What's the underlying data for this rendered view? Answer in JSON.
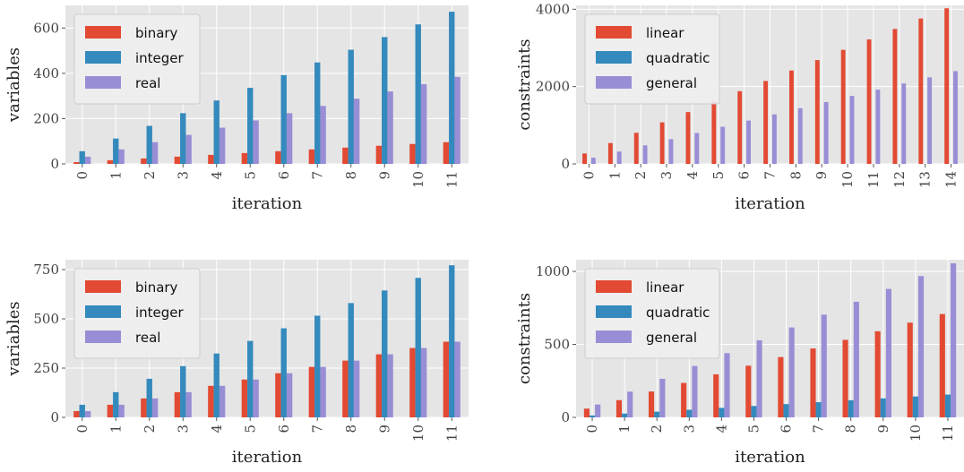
{
  "colors": {
    "binary_linear": "#e24a33",
    "integer_quadratic": "#348abd",
    "real_general": "#988ed5",
    "panel_bg": "#e5e5e5",
    "grid": "#ffffff"
  },
  "chart_data": [
    {
      "type": "bar",
      "xlabel": "iteration",
      "ylabel": "variables",
      "categories": [
        "0",
        "1",
        "2",
        "3",
        "4",
        "5",
        "6",
        "7",
        "8",
        "9",
        "10",
        "11"
      ],
      "ylim": [
        0,
        700
      ],
      "yticks": [
        0,
        200,
        400,
        600
      ],
      "legend": "top-left",
      "grid": true,
      "series": [
        {
          "name": "binary",
          "color": "#e24a33",
          "values": [
            8,
            16,
            24,
            32,
            40,
            48,
            56,
            64,
            72,
            80,
            88,
            96
          ]
        },
        {
          "name": "integer",
          "color": "#348abd",
          "values": [
            56,
            112,
            168,
            224,
            280,
            336,
            392,
            448,
            504,
            560,
            616,
            672
          ]
        },
        {
          "name": "real",
          "color": "#988ed5",
          "values": [
            32,
            64,
            96,
            128,
            160,
            192,
            224,
            256,
            288,
            320,
            352,
            384
          ]
        }
      ]
    },
    {
      "type": "bar",
      "xlabel": "iteration",
      "ylabel": "constraints",
      "categories": [
        "0",
        "1",
        "2",
        "3",
        "4",
        "5",
        "6",
        "7",
        "8",
        "9",
        "10",
        "11",
        "12",
        "13",
        "14"
      ],
      "ylim": [
        0,
        4100
      ],
      "yticks": [
        0,
        2000,
        4000
      ],
      "legend": "top-left",
      "grid": true,
      "series": [
        {
          "name": "linear",
          "color": "#e24a33",
          "values": [
            270,
            540,
            805,
            1075,
            1340,
            1610,
            1880,
            2145,
            2415,
            2685,
            2950,
            3220,
            3490,
            3760,
            4025
          ]
        },
        {
          "name": "quadratic",
          "color": "#348abd",
          "values": [
            0,
            0,
            0,
            0,
            0,
            0,
            0,
            0,
            0,
            0,
            0,
            0,
            0,
            0,
            0
          ]
        },
        {
          "name": "general",
          "color": "#988ed5",
          "values": [
            160,
            320,
            480,
            640,
            800,
            960,
            1120,
            1280,
            1440,
            1600,
            1760,
            1920,
            2080,
            2240,
            2400
          ]
        }
      ]
    },
    {
      "type": "bar",
      "xlabel": "iteration",
      "ylabel": "variables",
      "categories": [
        "0",
        "1",
        "2",
        "3",
        "4",
        "5",
        "6",
        "7",
        "8",
        "9",
        "10",
        "11"
      ],
      "ylim": [
        0,
        800
      ],
      "yticks": [
        0,
        250,
        500,
        750
      ],
      "legend": "top-left",
      "grid": true,
      "series": [
        {
          "name": "binary",
          "color": "#e24a33",
          "values": [
            32,
            64,
            96,
            128,
            160,
            192,
            224,
            256,
            288,
            320,
            352,
            384
          ]
        },
        {
          "name": "integer",
          "color": "#348abd",
          "values": [
            64,
            128,
            196,
            260,
            324,
            388,
            452,
            516,
            580,
            644,
            708,
            772
          ]
        },
        {
          "name": "real",
          "color": "#988ed5",
          "values": [
            32,
            64,
            96,
            128,
            160,
            192,
            224,
            256,
            288,
            320,
            352,
            384
          ]
        }
      ]
    },
    {
      "type": "bar",
      "xlabel": "iteration",
      "ylabel": "constraints",
      "categories": [
        "0",
        "1",
        "2",
        "3",
        "4",
        "5",
        "6",
        "7",
        "8",
        "9",
        "10",
        "11"
      ],
      "ylim": [
        0,
        1080
      ],
      "yticks": [
        0,
        500,
        1000
      ],
      "legend": "top-left",
      "grid": true,
      "series": [
        {
          "name": "linear",
          "color": "#e24a33",
          "values": [
            60,
            118,
            177,
            236,
            295,
            354,
            413,
            472,
            531,
            590,
            649,
            708
          ]
        },
        {
          "name": "quadratic",
          "color": "#348abd",
          "values": [
            13,
            26,
            39,
            52,
            65,
            78,
            91,
            104,
            117,
            130,
            143,
            156
          ]
        },
        {
          "name": "general",
          "color": "#988ed5",
          "values": [
            88,
            176,
            264,
            352,
            440,
            528,
            616,
            704,
            792,
            880,
            968,
            1056
          ]
        }
      ]
    }
  ]
}
